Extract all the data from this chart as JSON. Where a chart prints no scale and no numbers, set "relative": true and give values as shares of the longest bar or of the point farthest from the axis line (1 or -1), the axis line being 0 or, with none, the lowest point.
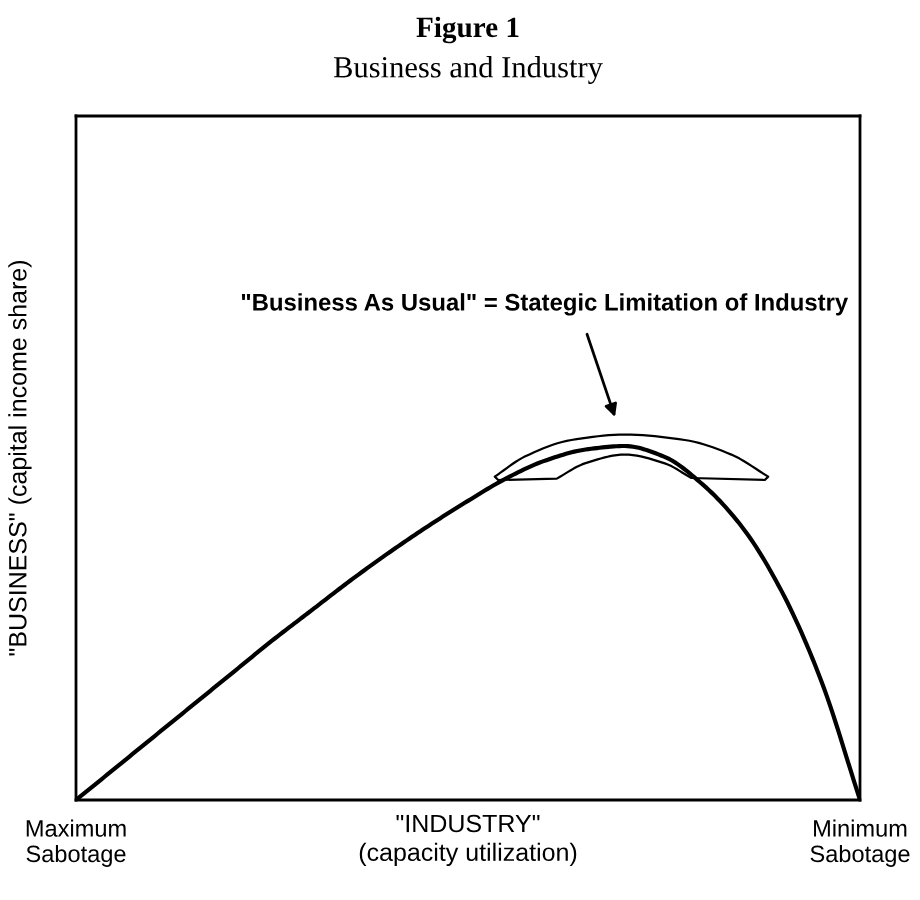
{
  "chart_data": {
    "type": "line",
    "title": "Figure 1",
    "subtitle": "Business and Industry",
    "xlabel": "\"INDUSTRY\"\n(capacity utilization)",
    "ylabel": "\"BUSINESS\" (capital income share)",
    "relative": true,
    "categories": [
      "Maximum\nSabotage",
      null,
      null,
      null,
      null,
      null,
      null,
      null,
      null,
      null,
      null,
      null,
      null,
      null,
      null,
      null,
      null,
      null,
      null,
      null,
      "Minimum\nSabotage"
    ],
    "series": [
      {
        "color": "#000000",
        "values": [
          0,
          0.09,
          0.18,
          0.27,
          0.36,
          0.45,
          0.535,
          0.62,
          0.7,
          0.775,
          0.845,
          0.91,
          0.96,
          0.99,
          1.0,
          0.97,
          0.89,
          0.77,
          0.59,
          0.34,
          0
        ]
      }
    ],
    "annotations": [
      "\"Business As Usual\" = Stategic Limitation of Industry"
    ],
    "line_style": "solid"
  }
}
